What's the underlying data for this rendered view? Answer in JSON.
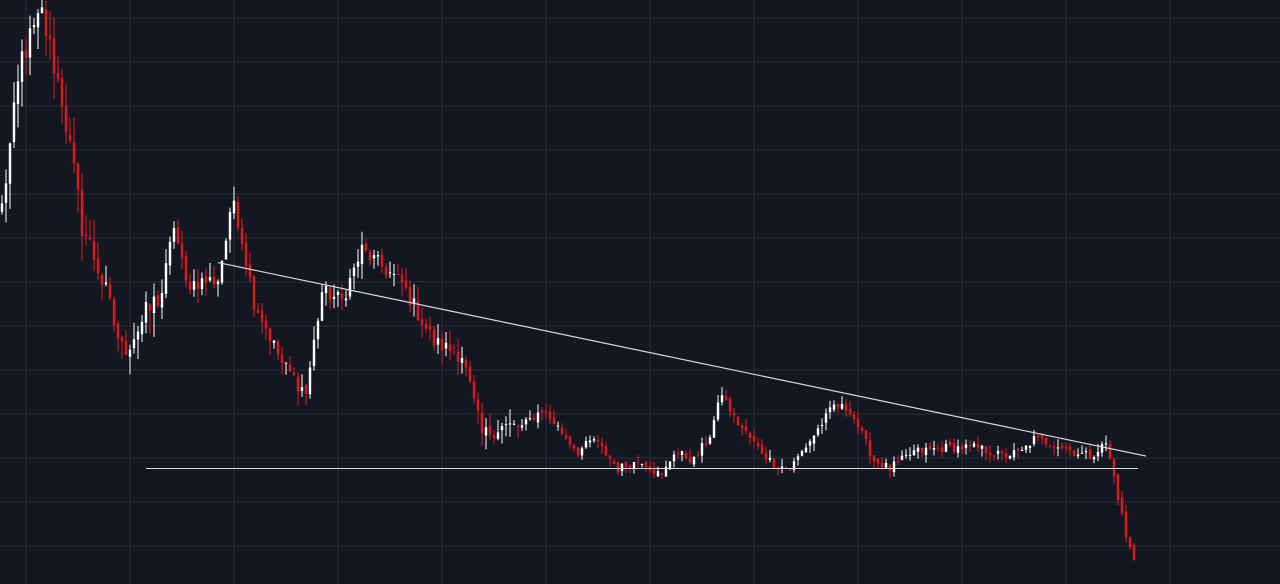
{
  "theme": {
    "background": "#131722",
    "grid": "#2a2e39",
    "up_color": "#ffffff",
    "down_color": "#e3171a",
    "line_color": "#d8d8d8"
  },
  "chart_data": {
    "type": "candlestick",
    "grid": true,
    "x_axis_visible": false,
    "y_axis_visible": false,
    "y_range": [
      4,
      140
    ],
    "anchors": [
      [
        0,
        92
      ],
      [
        5,
        128
      ],
      [
        10,
        138
      ],
      [
        15,
        118
      ],
      [
        20,
        88
      ],
      [
        24,
        78
      ],
      [
        30,
        58
      ],
      [
        33,
        62
      ],
      [
        40,
        72
      ],
      [
        43,
        88
      ],
      [
        46,
        74
      ],
      [
        54,
        75
      ],
      [
        58,
        94
      ],
      [
        63,
        70
      ],
      [
        70,
        55
      ],
      [
        76,
        48
      ],
      [
        80,
        72
      ],
      [
        85,
        70
      ],
      [
        90,
        82
      ],
      [
        95,
        78
      ],
      [
        100,
        74
      ],
      [
        108,
        60
      ],
      [
        115,
        57
      ],
      [
        120,
        38
      ],
      [
        125,
        40
      ],
      [
        130,
        40
      ],
      [
        135,
        44
      ],
      [
        138,
        41
      ],
      [
        144,
        34
      ],
      [
        148,
        37
      ],
      [
        154,
        30
      ],
      [
        160,
        32
      ],
      [
        165,
        28
      ],
      [
        168,
        34
      ],
      [
        173,
        32
      ],
      [
        177,
        38
      ],
      [
        180,
        48
      ],
      [
        183,
        42
      ],
      [
        188,
        36
      ],
      [
        193,
        31
      ],
      [
        197,
        30
      ],
      [
        203,
        38
      ],
      [
        208,
        45
      ],
      [
        212,
        44
      ],
      [
        218,
        32
      ],
      [
        222,
        30
      ],
      [
        228,
        34
      ],
      [
        236,
        35
      ],
      [
        244,
        35
      ],
      [
        250,
        33
      ],
      [
        255,
        34
      ],
      [
        258,
        37
      ],
      [
        263,
        36
      ],
      [
        268,
        34
      ],
      [
        272,
        33
      ],
      [
        276,
        36
      ],
      [
        278,
        28
      ],
      [
        281,
        14
      ],
      [
        283,
        8
      ]
    ],
    "trendline_descending": {
      "from": [
        54,
        79
      ],
      "to": [
        286,
        33
      ]
    },
    "trendline_support": {
      "from": [
        36,
        30
      ],
      "to": [
        284,
        30
      ]
    }
  }
}
